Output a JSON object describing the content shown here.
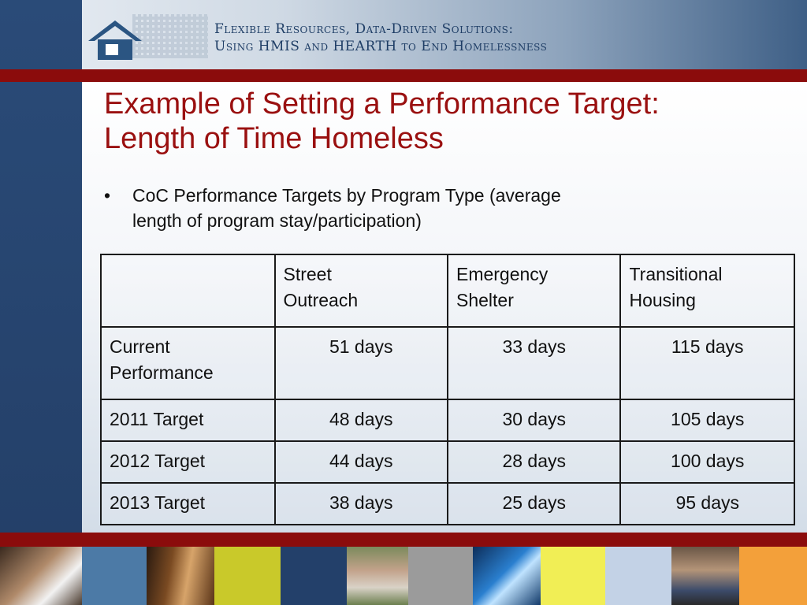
{
  "banner": {
    "line1": "Flexible Resources, Data-Driven Solutions:",
    "line2": "Using HMIS and HEARTH to End Homelessness",
    "logo_icon": "house-icon"
  },
  "slide": {
    "title_line1": "Example of Setting a Performance Target:",
    "title_line2": "Length of Time Homeless",
    "bullet_symbol": "•",
    "bullet_line1": "CoC Performance Targets by Program Type (average",
    "bullet_line2": "length of program stay/participation)"
  },
  "table": {
    "headers": [
      "",
      "Street Outreach",
      "Emergency Shelter",
      "Transitional Housing"
    ],
    "header_lines": [
      [
        "",
        ""
      ],
      [
        "Street",
        "Outreach"
      ],
      [
        "Emergency",
        "Shelter"
      ],
      [
        "Transitional",
        "Housing"
      ]
    ],
    "rows": [
      {
        "label_lines": [
          "Current",
          "Performance"
        ],
        "values": [
          "51 days",
          "33 days",
          "115 days"
        ]
      },
      {
        "label_lines": [
          "2011 Target"
        ],
        "values": [
          "48 days",
          "30 days",
          "105 days"
        ]
      },
      {
        "label_lines": [
          "2012 Target"
        ],
        "values": [
          "44 days",
          "28 days",
          "100 days"
        ]
      },
      {
        "label_lines": [
          "2013 Target"
        ],
        "values": [
          "38 days",
          "25 days",
          "95 days"
        ]
      }
    ]
  },
  "colors": {
    "accent_red": "#8b0c0c",
    "title_red": "#9a1010",
    "navy": "#244069"
  }
}
